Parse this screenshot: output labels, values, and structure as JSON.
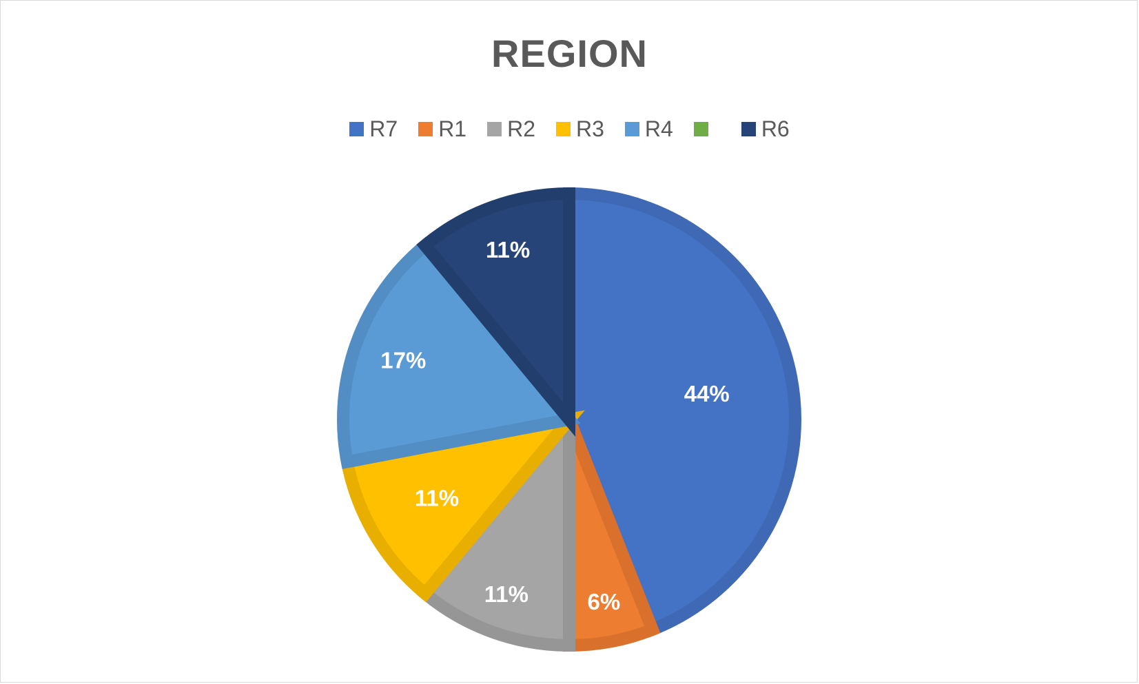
{
  "chart_data": {
    "type": "pie",
    "title": "REGION",
    "legend_position": "top",
    "categories": [
      "R7",
      "R1",
      "R2",
      "R3",
      "R4",
      "",
      "R6"
    ],
    "values": [
      44,
      6,
      11,
      11,
      17,
      0,
      11
    ],
    "data_labels": [
      "44%",
      "6%",
      "11%",
      "11%",
      "17%",
      "",
      "11%"
    ],
    "colors": [
      "#4472c4",
      "#ed7d31",
      "#a5a5a5",
      "#ffc000",
      "#5b9bd5",
      "#70ad47",
      "#264478"
    ],
    "border_colors": [
      "#3f68b5",
      "#d9712c",
      "#969696",
      "#e8ae00",
      "#528dc4",
      "#669e41",
      "#223e6c"
    ]
  }
}
